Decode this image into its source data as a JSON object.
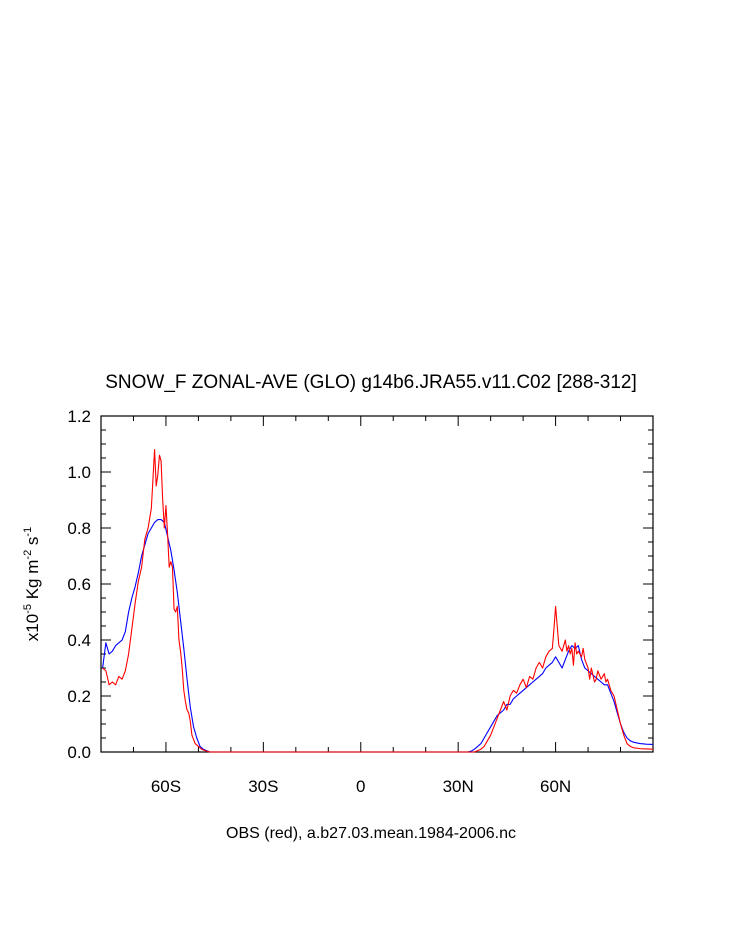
{
  "chart_data": {
    "type": "line",
    "title": "SNOW_F ZONAL-AVE (GLO) g14b6.JRA55.v11.C02 [288-312]",
    "xlabel": "OBS (red), a.b27.03.mean.1984-2006.nc",
    "ylabel": {
      "pre": "x10",
      "exp1": "-5",
      "mid1": " Kg m",
      "exp2": "-2",
      "mid2": " s",
      "exp3": "-1"
    },
    "xlim": [
      -80,
      90
    ],
    "ylim": [
      0,
      1.2
    ],
    "xticks": [
      {
        "value": -60,
        "label": "60S"
      },
      {
        "value": -30,
        "label": "30S"
      },
      {
        "value": 0,
        "label": "0"
      },
      {
        "value": 30,
        "label": "30N"
      },
      {
        "value": 60,
        "label": "60N"
      }
    ],
    "yticks": [
      {
        "value": 0.0,
        "label": "0.0"
      },
      {
        "value": 0.2,
        "label": "0.2"
      },
      {
        "value": 0.4,
        "label": "0.4"
      },
      {
        "value": 0.6,
        "label": "0.6"
      },
      {
        "value": 0.8,
        "label": "0.8"
      },
      {
        "value": 1.0,
        "label": "1.0"
      },
      {
        "value": 1.2,
        "label": "1.2"
      }
    ],
    "series": [
      {
        "color": "#0000ff",
        "points": [
          [
            -79.5,
            0.3
          ],
          [
            -78.5,
            0.39
          ],
          [
            -77.5,
            0.35
          ],
          [
            -76.5,
            0.36
          ],
          [
            -75.5,
            0.38
          ],
          [
            -74.5,
            0.39
          ],
          [
            -73.5,
            0.4
          ],
          [
            -72.5,
            0.43
          ],
          [
            -71.5,
            0.5
          ],
          [
            -70.5,
            0.55
          ],
          [
            -69.5,
            0.59
          ],
          [
            -68.5,
            0.64
          ],
          [
            -67.5,
            0.7
          ],
          [
            -66.5,
            0.74
          ],
          [
            -65.5,
            0.78
          ],
          [
            -64.5,
            0.8
          ],
          [
            -63.5,
            0.82
          ],
          [
            -62.5,
            0.83
          ],
          [
            -61.5,
            0.83
          ],
          [
            -60.5,
            0.82
          ],
          [
            -59.5,
            0.77
          ],
          [
            -58.5,
            0.72
          ],
          [
            -57.5,
            0.65
          ],
          [
            -56.5,
            0.57
          ],
          [
            -55.5,
            0.47
          ],
          [
            -54.5,
            0.37
          ],
          [
            -53.5,
            0.26
          ],
          [
            -52.5,
            0.16
          ],
          [
            -51.5,
            0.09
          ],
          [
            -50.5,
            0.05
          ],
          [
            -49.5,
            0.02
          ],
          [
            -48.5,
            0.01
          ],
          [
            -47.5,
            0.005
          ],
          [
            -46.5,
            0.0
          ],
          [
            -40,
            0.0
          ],
          [
            -20,
            0.0
          ],
          [
            0,
            0.0
          ],
          [
            20,
            0.0
          ],
          [
            33,
            0.0
          ],
          [
            34,
            0.003
          ],
          [
            35,
            0.01
          ],
          [
            36,
            0.02
          ],
          [
            37,
            0.03
          ],
          [
            38,
            0.05
          ],
          [
            39,
            0.07
          ],
          [
            40,
            0.09
          ],
          [
            41,
            0.11
          ],
          [
            42,
            0.13
          ],
          [
            43,
            0.14
          ],
          [
            44,
            0.15
          ],
          [
            45,
            0.17
          ],
          [
            46,
            0.17
          ],
          [
            47,
            0.19
          ],
          [
            48,
            0.2
          ],
          [
            49,
            0.21
          ],
          [
            50,
            0.22
          ],
          [
            51,
            0.23
          ],
          [
            52,
            0.24
          ],
          [
            53,
            0.25
          ],
          [
            54,
            0.26
          ],
          [
            55,
            0.27
          ],
          [
            56,
            0.28
          ],
          [
            57,
            0.3
          ],
          [
            58,
            0.31
          ],
          [
            59,
            0.32
          ],
          [
            60,
            0.34
          ],
          [
            61,
            0.32
          ],
          [
            62,
            0.3
          ],
          [
            63,
            0.33
          ],
          [
            64,
            0.36
          ],
          [
            65,
            0.38
          ],
          [
            66,
            0.37
          ],
          [
            67,
            0.38
          ],
          [
            68,
            0.33
          ],
          [
            69,
            0.3
          ],
          [
            70,
            0.29
          ],
          [
            71,
            0.28
          ],
          [
            72,
            0.27
          ],
          [
            73,
            0.26
          ],
          [
            74,
            0.25
          ],
          [
            75,
            0.24
          ],
          [
            76,
            0.24
          ],
          [
            77,
            0.21
          ],
          [
            78,
            0.18
          ],
          [
            79,
            0.14
          ],
          [
            80,
            0.1
          ],
          [
            81,
            0.07
          ],
          [
            82,
            0.05
          ],
          [
            83,
            0.04
          ],
          [
            84,
            0.035
          ],
          [
            86,
            0.03
          ],
          [
            88,
            0.028
          ],
          [
            90,
            0.027
          ]
        ]
      },
      {
        "color": "#ff0000",
        "points": [
          [
            -79.5,
            0.3
          ],
          [
            -78.5,
            0.29
          ],
          [
            -77.5,
            0.24
          ],
          [
            -76.5,
            0.25
          ],
          [
            -75.5,
            0.24
          ],
          [
            -74.5,
            0.27
          ],
          [
            -73.5,
            0.26
          ],
          [
            -72.5,
            0.29
          ],
          [
            -71.5,
            0.35
          ],
          [
            -70.5,
            0.44
          ],
          [
            -69.5,
            0.53
          ],
          [
            -68.5,
            0.61
          ],
          [
            -67.5,
            0.66
          ],
          [
            -66.5,
            0.76
          ],
          [
            -65.5,
            0.8
          ],
          [
            -64.5,
            0.87
          ],
          [
            -63.5,
            1.08
          ],
          [
            -63.0,
            0.95
          ],
          [
            -62.5,
            0.99
          ],
          [
            -62.0,
            1.06
          ],
          [
            -61.5,
            1.04
          ],
          [
            -61.0,
            0.9
          ],
          [
            -60.5,
            0.8
          ],
          [
            -60.0,
            0.88
          ],
          [
            -59.5,
            0.78
          ],
          [
            -59.0,
            0.66
          ],
          [
            -58.5,
            0.68
          ],
          [
            -58.0,
            0.66
          ],
          [
            -57.5,
            0.51
          ],
          [
            -57.0,
            0.5
          ],
          [
            -56.5,
            0.52
          ],
          [
            -56.0,
            0.4
          ],
          [
            -55.5,
            0.36
          ],
          [
            -55.0,
            0.3
          ],
          [
            -54.5,
            0.22
          ],
          [
            -54.0,
            0.18
          ],
          [
            -53.5,
            0.15
          ],
          [
            -53.0,
            0.14
          ],
          [
            -52.5,
            0.11
          ],
          [
            -52.0,
            0.06
          ],
          [
            -51.0,
            0.03
          ],
          [
            -50.0,
            0.02
          ],
          [
            -49.0,
            0.01
          ],
          [
            -48.0,
            0.005
          ],
          [
            -46.5,
            0.0
          ],
          [
            -40,
            0.0
          ],
          [
            -20,
            0.0
          ],
          [
            0,
            0.0
          ],
          [
            20,
            0.0
          ],
          [
            35,
            0.0
          ],
          [
            36,
            0.005
          ],
          [
            37,
            0.01
          ],
          [
            38,
            0.02
          ],
          [
            39,
            0.04
          ],
          [
            40,
            0.06
          ],
          [
            41,
            0.09
          ],
          [
            42,
            0.12
          ],
          [
            43,
            0.15
          ],
          [
            44,
            0.18
          ],
          [
            45,
            0.15
          ],
          [
            46,
            0.2
          ],
          [
            47,
            0.22
          ],
          [
            48,
            0.21
          ],
          [
            49,
            0.24
          ],
          [
            50,
            0.26
          ],
          [
            51,
            0.23
          ],
          [
            52,
            0.27
          ],
          [
            53,
            0.26
          ],
          [
            54,
            0.3
          ],
          [
            55,
            0.32
          ],
          [
            56,
            0.3
          ],
          [
            57,
            0.34
          ],
          [
            58,
            0.36
          ],
          [
            59,
            0.37
          ],
          [
            59.5,
            0.44
          ],
          [
            60,
            0.52
          ],
          [
            60.5,
            0.45
          ],
          [
            61,
            0.38
          ],
          [
            62,
            0.36
          ],
          [
            63,
            0.4
          ],
          [
            63.5,
            0.36
          ],
          [
            64,
            0.38
          ],
          [
            64.5,
            0.35
          ],
          [
            65,
            0.37
          ],
          [
            65.5,
            0.31
          ],
          [
            66,
            0.39
          ],
          [
            66.5,
            0.35
          ],
          [
            67,
            0.36
          ],
          [
            68,
            0.34
          ],
          [
            68.5,
            0.37
          ],
          [
            69,
            0.33
          ],
          [
            70,
            0.3
          ],
          [
            70.5,
            0.26
          ],
          [
            71,
            0.3
          ],
          [
            72,
            0.25
          ],
          [
            72.5,
            0.26
          ],
          [
            73,
            0.29
          ],
          [
            74,
            0.26
          ],
          [
            75,
            0.28
          ],
          [
            75.5,
            0.25
          ],
          [
            76,
            0.26
          ],
          [
            77,
            0.22
          ],
          [
            78,
            0.2
          ],
          [
            79,
            0.15
          ],
          [
            80,
            0.1
          ],
          [
            81,
            0.06
          ],
          [
            82,
            0.03
          ],
          [
            83,
            0.02
          ],
          [
            84,
            0.015
          ],
          [
            86,
            0.012
          ],
          [
            90,
            0.01
          ]
        ]
      }
    ]
  }
}
